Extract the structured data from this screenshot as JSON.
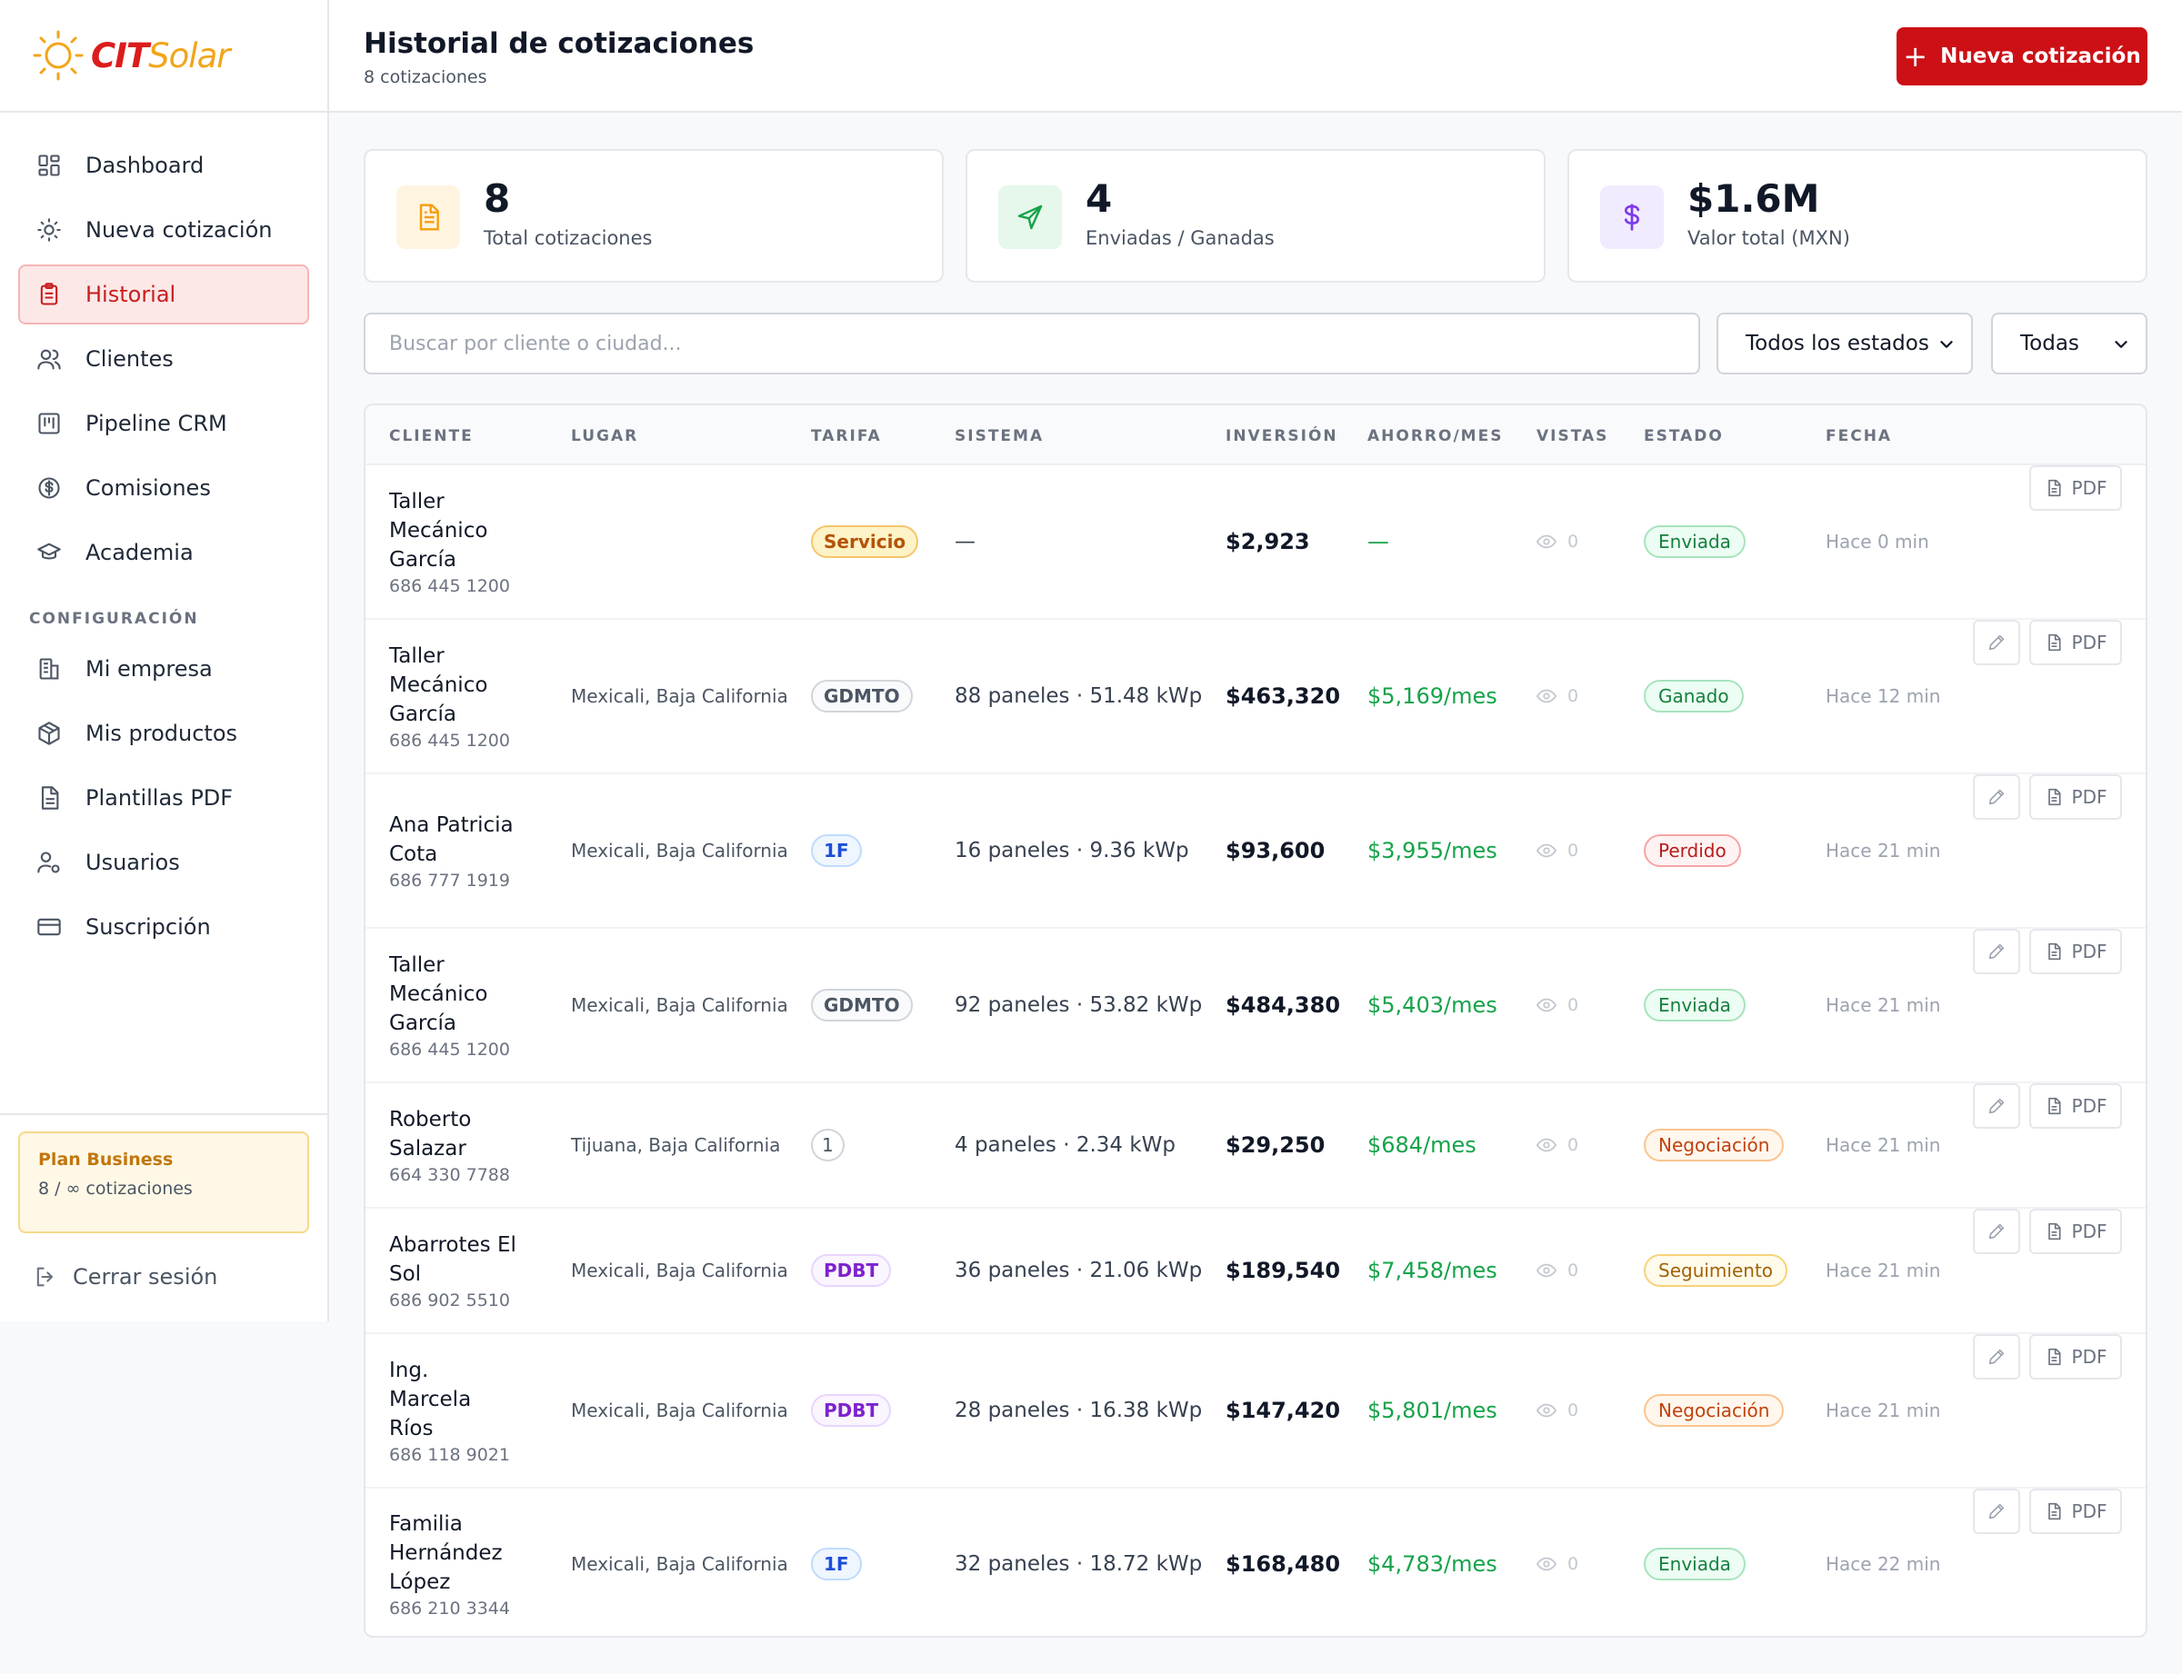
{
  "app": {
    "brand_cit": "CIT",
    "brand_solar": "Solar"
  },
  "sidebar": {
    "items": [
      {
        "label": "Dashboard",
        "icon": "grid-icon"
      },
      {
        "label": "Nueva cotización",
        "icon": "sun-icon"
      },
      {
        "label": "Historial",
        "icon": "clipboard-icon",
        "active": true
      },
      {
        "label": "Clientes",
        "icon": "users-icon"
      },
      {
        "label": "Pipeline CRM",
        "icon": "kanban-icon"
      },
      {
        "label": "Comisiones",
        "icon": "dollar-circle-icon"
      },
      {
        "label": "Academia",
        "icon": "graduation-cap-icon"
      }
    ],
    "section_label": "CONFIGURACIÓN",
    "config_items": [
      {
        "label": "Mi empresa",
        "icon": "building-icon"
      },
      {
        "label": "Mis productos",
        "icon": "package-icon"
      },
      {
        "label": "Plantillas PDF",
        "icon": "file-text-icon"
      },
      {
        "label": "Usuarios",
        "icon": "user-cog-icon"
      },
      {
        "label": "Suscripción",
        "icon": "credit-card-icon"
      }
    ],
    "plan": {
      "title": "Plan Business",
      "usage": "8 / ∞ cotizaciones"
    },
    "logout": "Cerrar sesión"
  },
  "header": {
    "title": "Historial de cotizaciones",
    "subtitle": "8 cotizaciones",
    "new_button": "Nueva cotización"
  },
  "stats": [
    {
      "value": "8",
      "label": "Total cotizaciones",
      "icon": "document-icon",
      "color": "#f59e0b",
      "bg": "#fff4e0"
    },
    {
      "value": "4",
      "label": "Enviadas / Ganadas",
      "icon": "send-icon",
      "color": "#16a34a",
      "bg": "#e6f7ec"
    },
    {
      "value": "$1.6M",
      "label": "Valor total (MXN)",
      "icon": "dollar-icon",
      "color": "#7c3aed",
      "bg": "#f1ebff"
    }
  ],
  "filters": {
    "search_placeholder": "Buscar por cliente o ciudad...",
    "estado": "Todos los estados",
    "tarifa": "Todas"
  },
  "table": {
    "headers": [
      "CLIENTE",
      "LUGAR",
      "TARIFA",
      "SISTEMA",
      "INVERSIÓN",
      "AHORRO/MES",
      "VISTAS",
      "ESTADO",
      "FECHA"
    ],
    "pdf_label": "PDF",
    "rows": [
      {
        "name": "Taller Mecánico García",
        "phone": "686 445 1200",
        "lugar": "",
        "tarifa": "Servicio",
        "tarifa_style": "servicio",
        "sistema": "—",
        "inversion": "$2,923",
        "ahorro": "—",
        "vistas": "0",
        "estado": "Enviada",
        "estado_style": "green",
        "fecha": "Hace 0 min",
        "editable": false
      },
      {
        "name": "Taller Mecánico García",
        "phone": "686 445 1200",
        "lugar": "Mexicali, Baja California",
        "tarifa": "GDMTO",
        "tarifa_style": "gray",
        "sistema": "88 paneles · 51.48 kWp",
        "inversion": "$463,320",
        "ahorro": "$5,169/mes",
        "vistas": "0",
        "estado": "Ganado",
        "estado_style": "green",
        "fecha": "Hace 12 min",
        "editable": true
      },
      {
        "name": "Ana Patricia Cota",
        "phone": "686 777 1919",
        "lugar": "Mexicali, Baja California",
        "tarifa": "1F",
        "tarifa_style": "blue",
        "sistema": "16 paneles · 9.36 kWp",
        "inversion": "$93,600",
        "ahorro": "$3,955/mes",
        "vistas": "0",
        "estado": "Perdido",
        "estado_style": "red",
        "fecha": "Hace 21 min",
        "editable": true
      },
      {
        "name": "Taller Mecánico García",
        "phone": "686 445 1200",
        "lugar": "Mexicali, Baja California",
        "tarifa": "GDMTO",
        "tarifa_style": "gray",
        "sistema": "92 paneles · 53.82 kWp",
        "inversion": "$484,380",
        "ahorro": "$5,403/mes",
        "vistas": "0",
        "estado": "Enviada",
        "estado_style": "green",
        "fecha": "Hace 21 min",
        "editable": true
      },
      {
        "name": "Roberto Salazar",
        "phone": "664 330 7788",
        "lugar": "Tijuana, Baja California",
        "tarifa": "1",
        "tarifa_style": "plain",
        "sistema": "4 paneles · 2.34 kWp",
        "inversion": "$29,250",
        "ahorro": "$684/mes",
        "vistas": "0",
        "estado": "Negociación",
        "estado_style": "orange",
        "fecha": "Hace 21 min",
        "editable": true
      },
      {
        "name": "Abarrotes El Sol",
        "phone": "686 902 5510",
        "lugar": "Mexicali, Baja California",
        "tarifa": "PDBT",
        "tarifa_style": "purple",
        "sistema": "36 paneles · 21.06 kWp",
        "inversion": "$189,540",
        "ahorro": "$7,458/mes",
        "vistas": "0",
        "estado": "Seguimiento",
        "estado_style": "yellow",
        "fecha": "Hace 21 min",
        "editable": true
      },
      {
        "name": "Ing. Marcela Ríos",
        "phone": "686 118 9021",
        "lugar": "Mexicali, Baja California",
        "tarifa": "PDBT",
        "tarifa_style": "purple",
        "sistema": "28 paneles · 16.38 kWp",
        "inversion": "$147,420",
        "ahorro": "$5,801/mes",
        "vistas": "0",
        "estado": "Negociación",
        "estado_style": "orange",
        "fecha": "Hace 21 min",
        "editable": true
      },
      {
        "name": "Familia Hernández López",
        "phone": "686 210 3344",
        "lugar": "Mexicali, Baja California",
        "tarifa": "1F",
        "tarifa_style": "blue",
        "sistema": "32 paneles · 18.72 kWp",
        "inversion": "$168,480",
        "ahorro": "$4,783/mes",
        "vistas": "0",
        "estado": "Enviada",
        "estado_style": "green",
        "fecha": "Hace 22 min",
        "editable": true
      }
    ]
  },
  "colors": {
    "brand_red": "#cc1016",
    "brand_yellow": "#f2a51a",
    "success_green": "#16a34a"
  }
}
